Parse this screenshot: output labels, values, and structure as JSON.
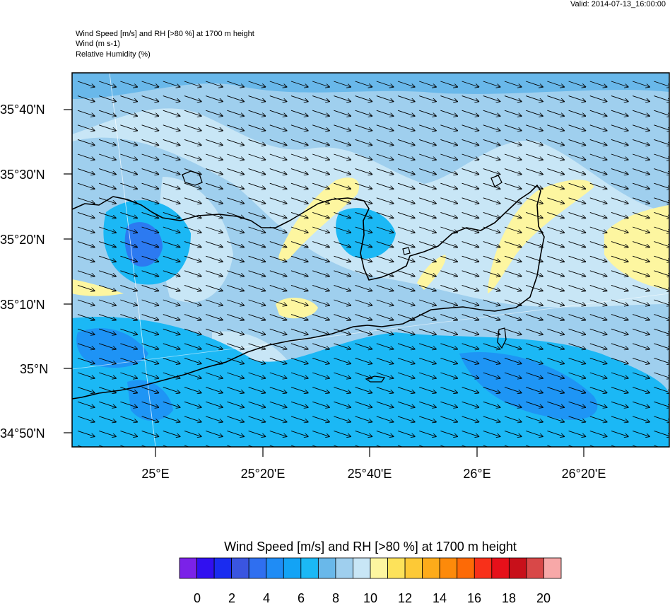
{
  "valid": "Valid: 2014-07-13_16:00:00",
  "header": {
    "line1": "Wind Speed [m/s] and RH [>80 %] at 1700 m height",
    "line2": "Wind   (m s-1)",
    "line3": "Relative Humidity   (%)"
  },
  "map": {
    "lat_labels": [
      "35°40'N",
      "35°30'N",
      "35°20'N",
      "35°10'N",
      "35°N",
      "34°50'N"
    ],
    "lon_labels": [
      "25°E",
      "25°20'E",
      "25°40'E",
      "26°E",
      "26°20'E"
    ],
    "wind_direction": "west-northwest to east-southeast",
    "humidity_highlight_color": "#fdf6a0"
  },
  "colorbar": {
    "title": "Wind Speed [m/s] and RH [>80 %] at 1700 m height",
    "labels": [
      "0",
      "2",
      "4",
      "6",
      "8",
      "10",
      "12",
      "14",
      "16",
      "18",
      "20"
    ],
    "colors": [
      "#7b22e8",
      "#3110f0",
      "#1a2cf0",
      "#3a55e0",
      "#2f6ff0",
      "#1f8cf5",
      "#13a3f5",
      "#1bb8f5",
      "#69b8ea",
      "#9fcfee",
      "#c8e6f6",
      "#fdf6a0",
      "#fde25a",
      "#fdc936",
      "#fdab1a",
      "#fd8a0a",
      "#fd6a06",
      "#f8301a",
      "#e6101a",
      "#c8101a",
      "#d84848",
      "#f7a8a8"
    ]
  }
}
